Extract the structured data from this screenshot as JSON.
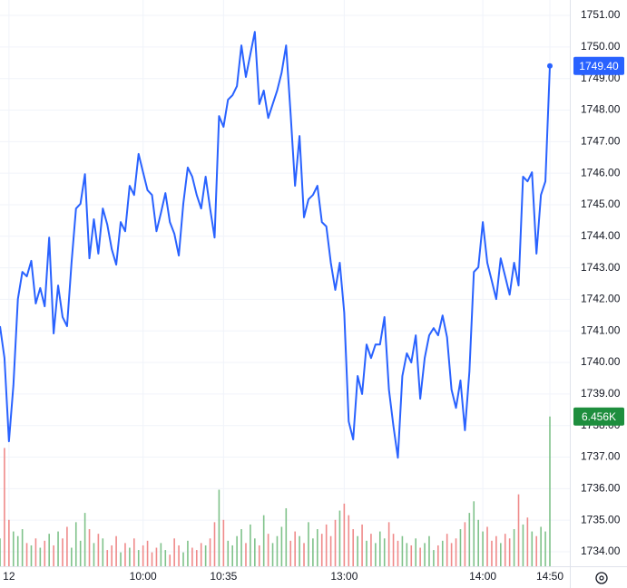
{
  "chart_data": {
    "type": "line",
    "categories": [
      null,
      null,
      "12",
      null,
      null,
      null,
      null,
      null,
      null,
      null,
      null,
      null,
      null,
      null,
      null,
      null,
      null,
      null,
      null,
      null,
      null,
      null,
      null,
      null,
      null,
      null,
      null,
      null,
      null,
      null,
      null,
      null,
      "10:00",
      null,
      null,
      null,
      null,
      null,
      null,
      null,
      null,
      null,
      null,
      null,
      null,
      null,
      null,
      null,
      null,
      null,
      "10:35",
      null,
      null,
      null,
      null,
      null,
      null,
      null,
      null,
      null,
      null,
      null,
      null,
      null,
      null,
      null,
      null,
      null,
      null,
      null,
      null,
      null,
      null,
      null,
      null,
      null,
      null,
      "13:00",
      null,
      null,
      null,
      null,
      null,
      null,
      null,
      null,
      null,
      null,
      null,
      null,
      null,
      null,
      null,
      null,
      null,
      null,
      null,
      null,
      null,
      null,
      null,
      null,
      null,
      null,
      null,
      null,
      null,
      null,
      "14:00",
      null,
      null,
      null,
      null,
      null,
      null,
      null,
      null,
      null,
      null,
      null,
      null,
      null,
      null,
      "14:50"
    ],
    "values": [
      1741.15,
      1740.14,
      1737.5,
      1739.28,
      1742.01,
      1742.87,
      1742.73,
      1743.22,
      1741.87,
      1742.36,
      1741.78,
      1743.96,
      1740.92,
      1742.44,
      1741.44,
      1741.15,
      1743.16,
      1744.88,
      1745.03,
      1745.97,
      1743.3,
      1744.54,
      1743.45,
      1744.88,
      1744.37,
      1743.59,
      1743.1,
      1744.45,
      1744.16,
      1745.6,
      1745.31,
      1746.61,
      1746.03,
      1745.46,
      1745.31,
      1744.16,
      1744.74,
      1745.37,
      1744.45,
      1744.08,
      1743.39,
      1745.03,
      1746.18,
      1745.89,
      1745.31,
      1744.88,
      1745.89,
      1744.88,
      1743.96,
      1747.81,
      1747.47,
      1748.33,
      1748.47,
      1748.76,
      1750.05,
      1749.05,
      1749.77,
      1750.48,
      1748.19,
      1748.62,
      1747.75,
      1748.19,
      1748.62,
      1749.19,
      1750.05,
      1747.9,
      1745.6,
      1747.18,
      1744.6,
      1745.17,
      1745.31,
      1745.6,
      1744.45,
      1744.31,
      1743.16,
      1742.3,
      1743.16,
      1741.58,
      1738.13,
      1737.56,
      1739.57,
      1739.0,
      1740.57,
      1740.14,
      1740.57,
      1740.57,
      1741.44,
      1739.14,
      1737.99,
      1736.98,
      1739.57,
      1740.29,
      1740.0,
      1740.86,
      1738.85,
      1740.14,
      1740.86,
      1741.09,
      1740.86,
      1741.49,
      1740.8,
      1739.14,
      1738.56,
      1739.43,
      1737.85,
      1739.71,
      1742.87,
      1743.02,
      1744.45,
      1743.16,
      1742.59,
      1742.01,
      1743.3,
      1742.73,
      1742.15,
      1743.16,
      1742.44,
      1745.89,
      1745.74,
      1746.03,
      1743.45,
      1745.31,
      1745.74,
      1749.4
    ],
    "last_label": "1749.40",
    "color": "#2962ff",
    "ylim": [
      1733.54,
      1751.49
    ],
    "yticks": [
      {
        "value": 1734,
        "label": "1734.00"
      },
      {
        "value": 1735,
        "label": "1735.00"
      },
      {
        "value": 1736,
        "label": "1736.00"
      },
      {
        "value": 1737,
        "label": "1737.00"
      },
      {
        "value": 1738,
        "label": "1738.00"
      },
      {
        "value": 1739,
        "label": "1739.00"
      },
      {
        "value": 1740,
        "label": "1740.00"
      },
      {
        "value": 1741,
        "label": "1741.00"
      },
      {
        "value": 1742,
        "label": "1742.00"
      },
      {
        "value": 1743,
        "label": "1743.00"
      },
      {
        "value": 1744,
        "label": "1744.00"
      },
      {
        "value": 1745,
        "label": "1745.00"
      },
      {
        "value": 1746,
        "label": "1746.00"
      },
      {
        "value": 1747,
        "label": "1747.00"
      },
      {
        "value": 1748,
        "label": "1748.00"
      },
      {
        "value": 1749,
        "label": "1749.00"
      },
      {
        "value": 1750,
        "label": "1750.00"
      },
      {
        "value": 1751,
        "label": "1751.00"
      }
    ],
    "grid": true,
    "volume": {
      "values": [
        1.2,
        5.1,
        2.0,
        1.5,
        1.3,
        1.6,
        1.0,
        0.9,
        1.2,
        0.8,
        1.1,
        1.4,
        0.9,
        1.5,
        1.2,
        1.7,
        0.8,
        1.9,
        1.1,
        2.3,
        1.6,
        1.0,
        1.4,
        1.2,
        0.7,
        0.9,
        1.3,
        0.6,
        1.0,
        0.8,
        1.2,
        0.7,
        0.9,
        1.1,
        0.6,
        0.8,
        1.0,
        0.7,
        0.5,
        1.2,
        0.9,
        0.6,
        1.1,
        0.8,
        0.7,
        1.0,
        0.9,
        1.2,
        1.9,
        3.3,
        2.0,
        1.1,
        0.9,
        1.3,
        1.6,
        1.0,
        1.8,
        1.2,
        0.9,
        2.2,
        1.4,
        1.0,
        1.3,
        1.7,
        2.5,
        1.1,
        1.5,
        1.3,
        1.0,
        1.9,
        1.2,
        1.6,
        1.4,
        1.8,
        1.3,
        2.0,
        2.4,
        2.7,
        2.2,
        1.6,
        1.3,
        1.8,
        1.1,
        1.4,
        1.0,
        1.5,
        1.2,
        1.9,
        1.4,
        1.1,
        1.3,
        1.0,
        0.9,
        1.2,
        0.8,
        1.0,
        1.3,
        0.7,
        0.9,
        1.1,
        1.4,
        1.0,
        1.2,
        1.6,
        1.9,
        2.3,
        2.8,
        2.0,
        1.5,
        1.7,
        1.1,
        1.3,
        1.0,
        1.4,
        1.2,
        1.6,
        3.1,
        1.8,
        2.1,
        1.5,
        1.3,
        1.7,
        1.5,
        6.456
      ],
      "last_label": "6.456K",
      "ylim": [
        0,
        24.41
      ],
      "up_color": "#7fc28a",
      "down_color": "#ef8a8a",
      "label_color": "#1e8e3e"
    }
  }
}
